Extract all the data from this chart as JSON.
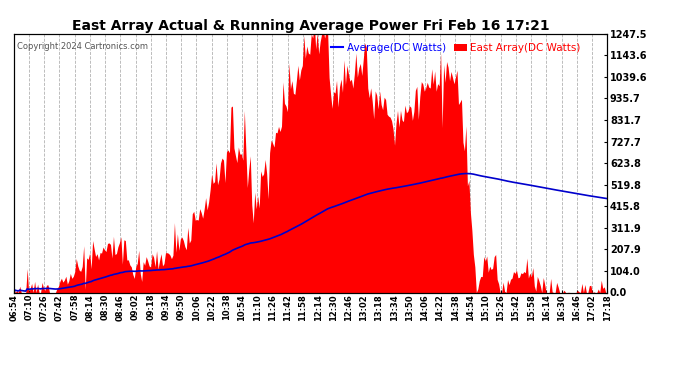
{
  "title": "East Array Actual & Running Average Power Fri Feb 16 17:21",
  "copyright": "Copyright 2024 Cartronics.com",
  "ylabel_right_ticks": [
    0.0,
    104.0,
    207.9,
    311.9,
    415.8,
    519.8,
    623.8,
    727.7,
    831.7,
    935.7,
    1039.6,
    1143.6,
    1247.5
  ],
  "ymax": 1247.5,
  "ymin": 0.0,
  "fill_color": "#ff0000",
  "avg_color": "#0000cc",
  "background_color": "#ffffff",
  "grid_color": "#aaaaaa",
  "title_color": "#000000",
  "legend_avg_color": "#0000ff",
  "legend_east_color": "#ff0000",
  "xtick_labels": [
    "06:54",
    "07:10",
    "07:26",
    "07:42",
    "07:58",
    "08:14",
    "08:30",
    "08:46",
    "09:02",
    "09:18",
    "09:34",
    "09:50",
    "10:06",
    "10:22",
    "10:38",
    "10:54",
    "11:10",
    "11:26",
    "11:42",
    "11:58",
    "12:14",
    "12:30",
    "12:46",
    "13:02",
    "13:18",
    "13:34",
    "13:50",
    "14:06",
    "14:22",
    "14:38",
    "14:54",
    "15:10",
    "15:26",
    "15:42",
    "15:58",
    "16:14",
    "16:30",
    "16:46",
    "17:02",
    "17:18"
  ],
  "n_points": 400
}
